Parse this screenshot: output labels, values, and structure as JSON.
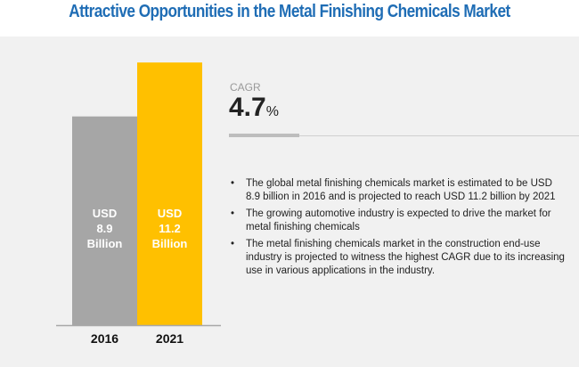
{
  "title": "Attractive Opportunities in the Metal Finishing Chemicals Market",
  "colors": {
    "title": "#1f6db5",
    "bar_2016": "#a6a6a6",
    "bar_2021": "#ffc000",
    "background": "#f1f1f1"
  },
  "chart_data": {
    "type": "bar",
    "title": "Attractive Opportunities in the Metal Finishing Chemicals Market",
    "categories": [
      "2016",
      "2021"
    ],
    "values": [
      8.9,
      11.2
    ],
    "unit": "USD Billion",
    "labels": [
      {
        "line1": "USD",
        "line2": "8.9",
        "line3": "Billion"
      },
      {
        "line1": "USD",
        "line2": "11.2",
        "line3": "Billion"
      }
    ],
    "xlabel": "",
    "ylabel": "",
    "ylim": [
      0,
      11.7
    ],
    "grid": false
  },
  "cagr": {
    "label": "CAGR",
    "value": "4.7",
    "unit": "%"
  },
  "bullets": [
    "The global metal finishing chemicals market is estimated to be USD 8.9 billion  in  2016 and is projected to reach USD 11.2 billion by 2021",
    "The growing automotive industry is expected to drive the market for metal finishing chemicals",
    "The metal finishing chemicals market in the construction end-use industry is projected to witness the highest CAGR due to its increasing use in various applications in the industry."
  ],
  "bullet_symbol": "•"
}
